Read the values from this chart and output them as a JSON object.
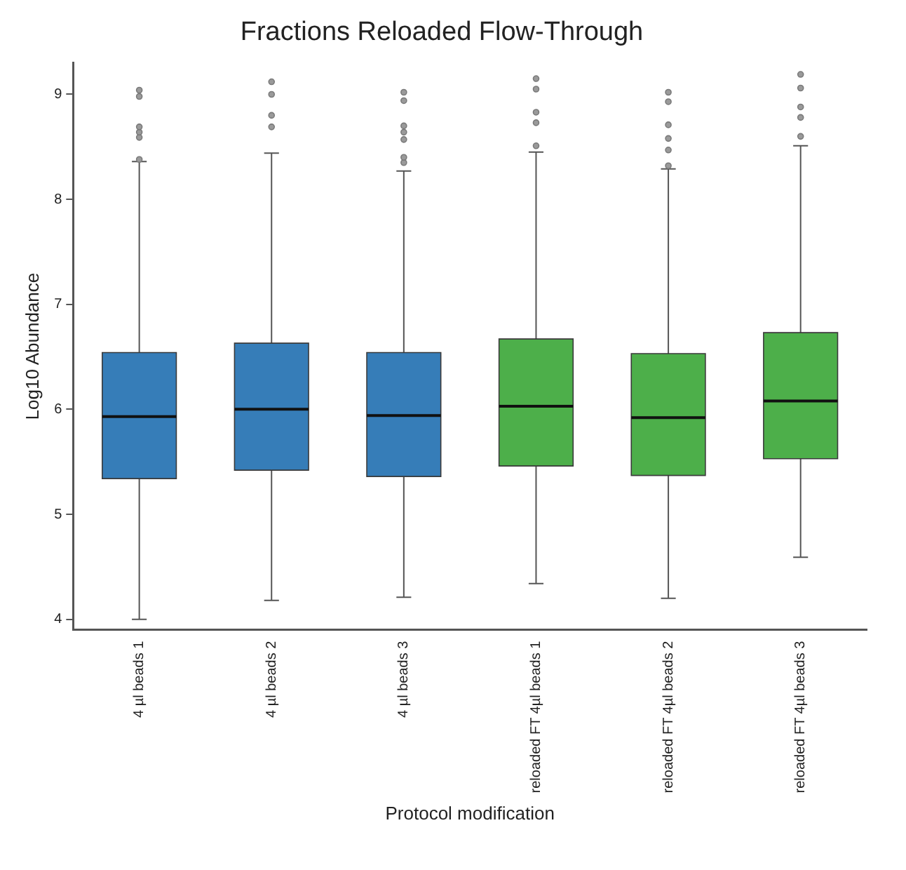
{
  "chart_data": {
    "type": "box",
    "title": "Fractions Reloaded Flow-Through",
    "xlabel": "Protocol modification",
    "ylabel": "Log10 Abundance",
    "categories": [
      "4 µl beads 1",
      "4 µl beads 2",
      "4 µl beads 3",
      "reloaded FT 4µl beads 1",
      "reloaded FT 4µl beads 2",
      "reloaded FT 4µl beads 3"
    ],
    "colors": [
      "#367db8",
      "#367db8",
      "#367db8",
      "#4daf4a",
      "#4daf4a",
      "#4daf4a"
    ],
    "boxes": [
      {
        "low": 4.0,
        "q1": 5.34,
        "median": 5.93,
        "q3": 6.54,
        "high": 8.36,
        "outliers": [
          9.04,
          8.98,
          8.69,
          8.64,
          8.59,
          8.38
        ]
      },
      {
        "low": 4.18,
        "q1": 5.42,
        "median": 6.0,
        "q3": 6.63,
        "high": 8.44,
        "outliers": [
          9.12,
          9.0,
          8.8,
          8.69
        ]
      },
      {
        "low": 4.21,
        "q1": 5.36,
        "median": 5.94,
        "q3": 6.54,
        "high": 8.27,
        "outliers": [
          9.02,
          8.94,
          8.7,
          8.64,
          8.57,
          8.4,
          8.35
        ]
      },
      {
        "low": 4.34,
        "q1": 5.46,
        "median": 6.03,
        "q3": 6.67,
        "high": 8.45,
        "outliers": [
          9.15,
          9.05,
          8.83,
          8.73,
          8.51
        ]
      },
      {
        "low": 4.2,
        "q1": 5.37,
        "median": 5.92,
        "q3": 6.53,
        "high": 8.29,
        "outliers": [
          9.02,
          8.93,
          8.71,
          8.58,
          8.47,
          8.32
        ]
      },
      {
        "low": 4.59,
        "q1": 5.53,
        "median": 6.08,
        "q3": 6.73,
        "high": 8.51,
        "outliers": [
          9.19,
          9.06,
          8.88,
          8.78,
          8.6
        ]
      }
    ],
    "ylim": [
      3.9,
      9.3
    ],
    "yticks": [
      4,
      5,
      6,
      7,
      8,
      9
    ],
    "grid": false,
    "legend": false
  }
}
